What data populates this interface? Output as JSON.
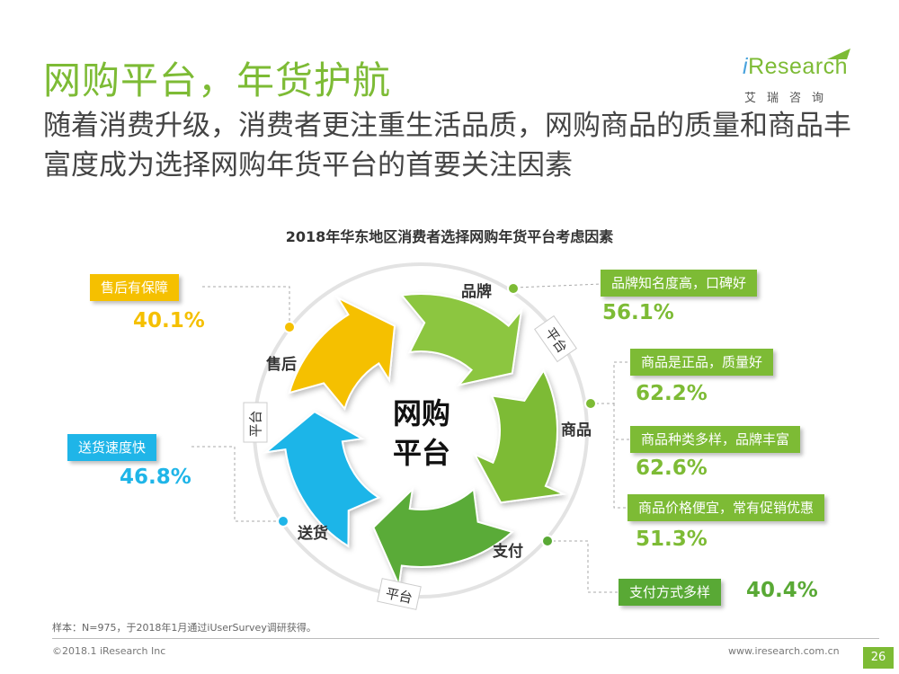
{
  "title": "网购平台，年货护航",
  "subtitle": "随着消费升级，消费者更注重生活品质，网购商品的质量和商品丰富度成为选择网购年货平台的首要关注因素",
  "logo": {
    "brand": "Research",
    "brand_prefix": "i",
    "cn": "艾瑞咨询"
  },
  "chart_title": "2018年华东地区消费者选择网购年货平台考虑因素",
  "center": {
    "line1": "网购",
    "line2": "平台"
  },
  "segments": {
    "brand": "品牌",
    "goods": "商品",
    "pay": "支付",
    "delivery": "送货",
    "aftersale": "售后"
  },
  "platform_labels": [
    "平台",
    "平台",
    "平台"
  ],
  "factors": {
    "aftersale": {
      "label": "售后有保障",
      "value": "40.1%",
      "color": "#f5c000"
    },
    "brand": {
      "label": "品牌知名度高，口碑好",
      "value": "56.1%",
      "color": "#7dbb35"
    },
    "genuine": {
      "label": "商品是正品，质量好",
      "value": "62.2%",
      "color": "#7dbb35"
    },
    "variety": {
      "label": "商品种类多样，品牌丰富",
      "value": "62.6%",
      "color": "#7dbb35"
    },
    "price": {
      "label": "商品价格便宜，常有促销优惠",
      "value": "51.3%",
      "color": "#7dbb35"
    },
    "payment": {
      "label": "支付方式多样",
      "value": "40.4%",
      "color": "#59a935"
    },
    "delivery": {
      "label": "送货速度快",
      "value": "46.8%",
      "color": "#1fb5e8"
    }
  },
  "footnote": "样本：N=975，于2018年1月通过iUserSurvey调研获得。",
  "copyright": "©2018.1 iResearch Inc",
  "website": "www.iresearch.com.cn",
  "page_number": "26"
}
